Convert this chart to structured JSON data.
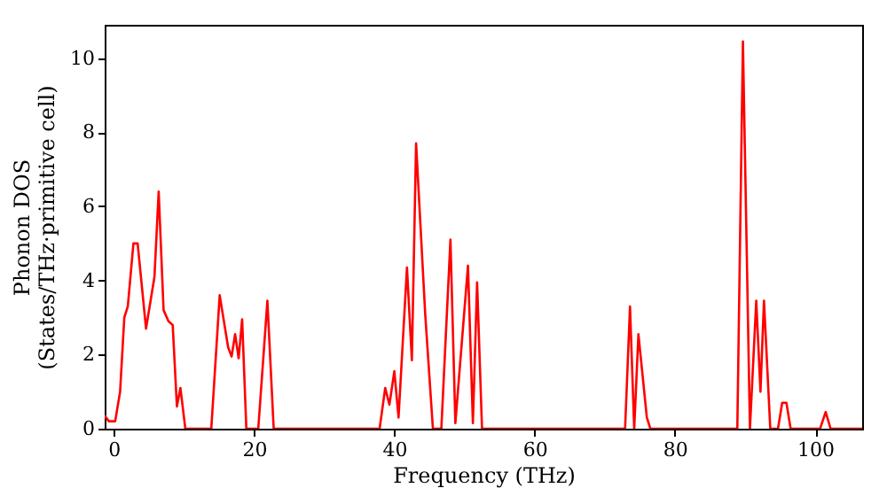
{
  "chart_data": {
    "type": "line",
    "xlabel": "Frequency (THz)",
    "ylabel": "Phonon DOS\n(States/THz·primitive cell)",
    "xlim": [
      -1.3,
      106.7
    ],
    "ylim": [
      0,
      10.9
    ],
    "xticks": [
      0,
      20,
      40,
      60,
      80,
      100
    ],
    "yticks": [
      0,
      2,
      4,
      6,
      8,
      10
    ],
    "grid": false,
    "line_style": "solid",
    "x": [
      -1.3,
      -0.7,
      0.2,
      0.9,
      1.5,
      2.0,
      2.8,
      3.4,
      4.6,
      5.8,
      6.4,
      7.1,
      7.8,
      8.4,
      9.0,
      9.5,
      10.2,
      13.9,
      15.1,
      16.3,
      16.8,
      17.3,
      17.8,
      18.3,
      18.9,
      20.6,
      21.9,
      22.8,
      37.9,
      38.7,
      39.3,
      40.0,
      40.6,
      41.8,
      42.5,
      43.1,
      44.4,
      45.5,
      46.7,
      48.0,
      48.7,
      50.5,
      51.2,
      51.8,
      52.5,
      72.9,
      73.6,
      74.2,
      74.8,
      76.0,
      76.5,
      88.9,
      89.7,
      90.7,
      91.6,
      92.2,
      92.7,
      93.6,
      94.7,
      95.3,
      95.9,
      96.5,
      100.7,
      101.5,
      102.2,
      106.7
    ],
    "series": [
      {
        "color": "#ff0000",
        "values": [
          0.35,
          0.2,
          0.2,
          1.0,
          3.0,
          3.3,
          5.0,
          5.0,
          2.7,
          4.1,
          6.4,
          3.2,
          2.9,
          2.8,
          0.6,
          1.1,
          0,
          0,
          3.6,
          2.2,
          1.95,
          2.55,
          1.9,
          2.95,
          0,
          0,
          3.45,
          0,
          0,
          1.1,
          0.65,
          1.55,
          0.3,
          4.35,
          1.85,
          7.7,
          3.1,
          0,
          0,
          5.1,
          0.15,
          4.4,
          0.15,
          3.95,
          0,
          0,
          3.3,
          0,
          2.55,
          0.3,
          0,
          0,
          10.45,
          0,
          3.45,
          1.0,
          3.45,
          0,
          0,
          0.7,
          0.7,
          0,
          0,
          0.45,
          0,
          0
        ]
      }
    ]
  }
}
